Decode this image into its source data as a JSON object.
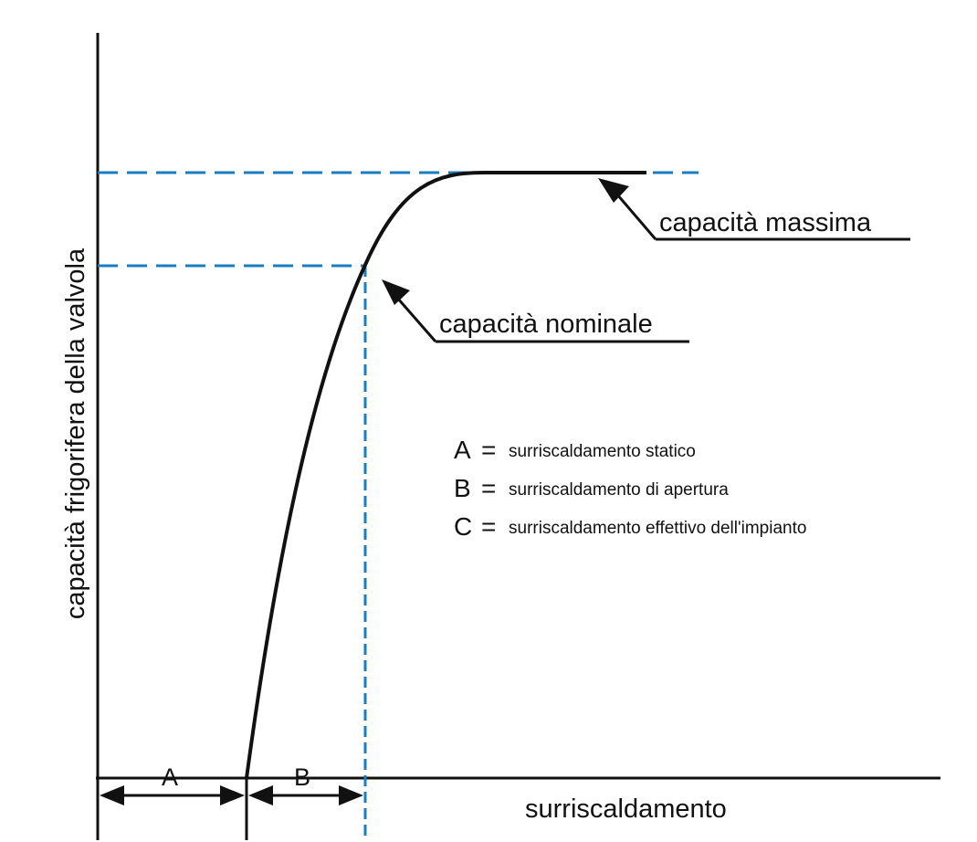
{
  "axes": {
    "y_label": "capacità frigorifera della valvola",
    "x_label": "surriscaldamento"
  },
  "annotations": {
    "max_capacity": "capacità massima",
    "nominal_capacity": "capacità nominale"
  },
  "legend": [
    {
      "letter": "A",
      "eq": "=",
      "text": "surriscaldamento statico"
    },
    {
      "letter": "B",
      "eq": "=",
      "text": "surriscaldamento di apertura"
    },
    {
      "letter": "C",
      "eq": "=",
      "text": "surriscaldamento effettivo dell'impianto"
    }
  ],
  "intervals": {
    "a": "A",
    "b": "B"
  },
  "colors": {
    "curve": "#111111",
    "guide_dashed": "#1a7dc0",
    "text": "#111111"
  }
}
